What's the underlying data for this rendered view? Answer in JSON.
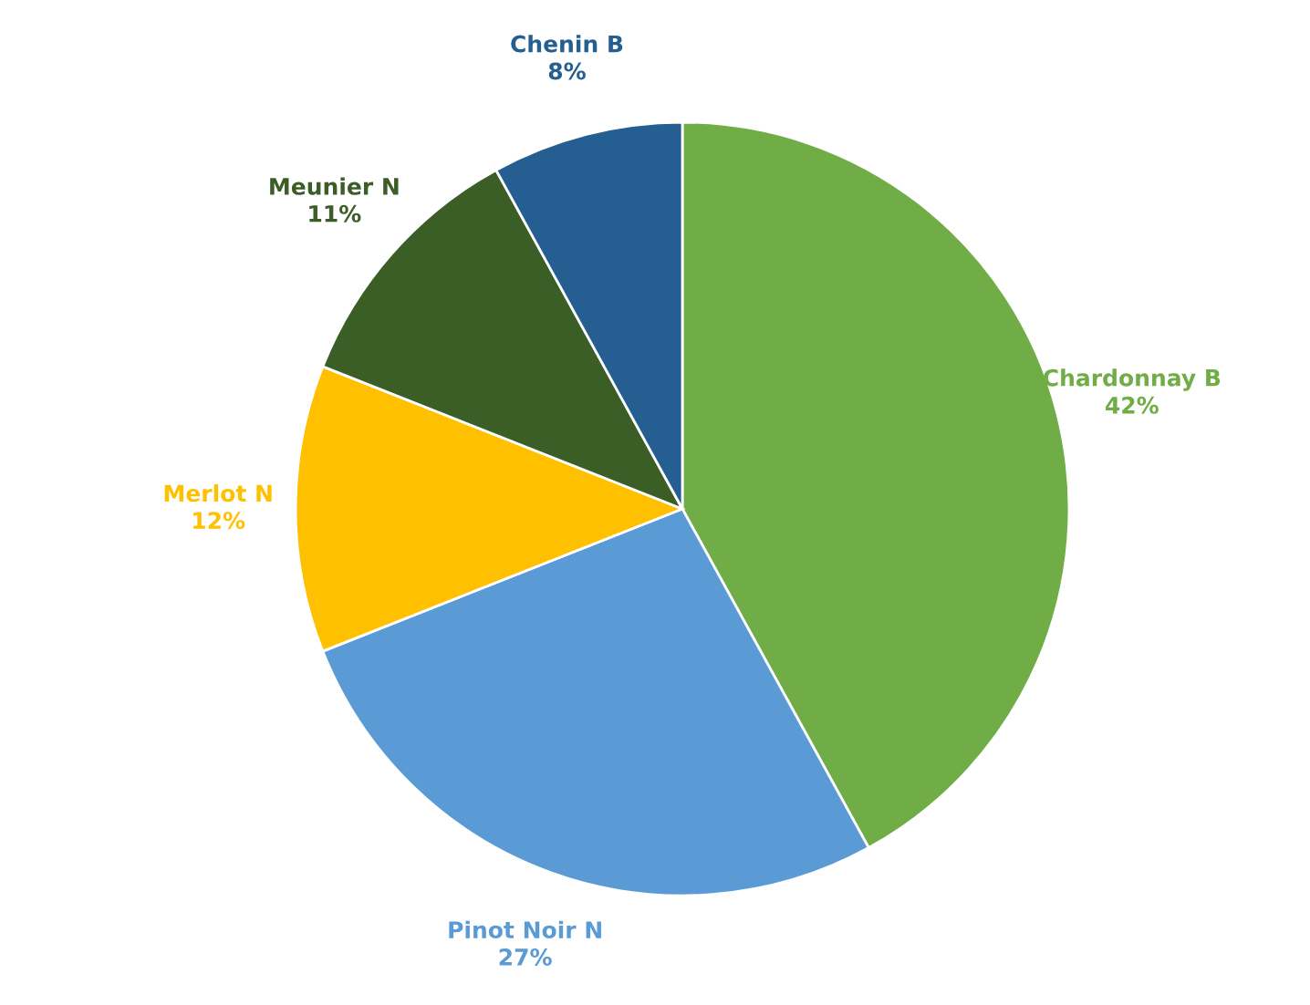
{
  "chart_data": {
    "type": "pie",
    "categories": [
      "Chardonnay B",
      "Pinot Noir N",
      "Merlot N",
      "Meunier N",
      "Chenin B"
    ],
    "values": [
      42,
      27,
      12,
      11,
      8
    ],
    "value_labels": [
      "42%",
      "27%",
      "12%",
      "11%",
      "8%"
    ],
    "colors": [
      "#70ad47",
      "#5b9bd5",
      "#ffc000",
      "#3b5e27",
      "#255e91"
    ]
  }
}
